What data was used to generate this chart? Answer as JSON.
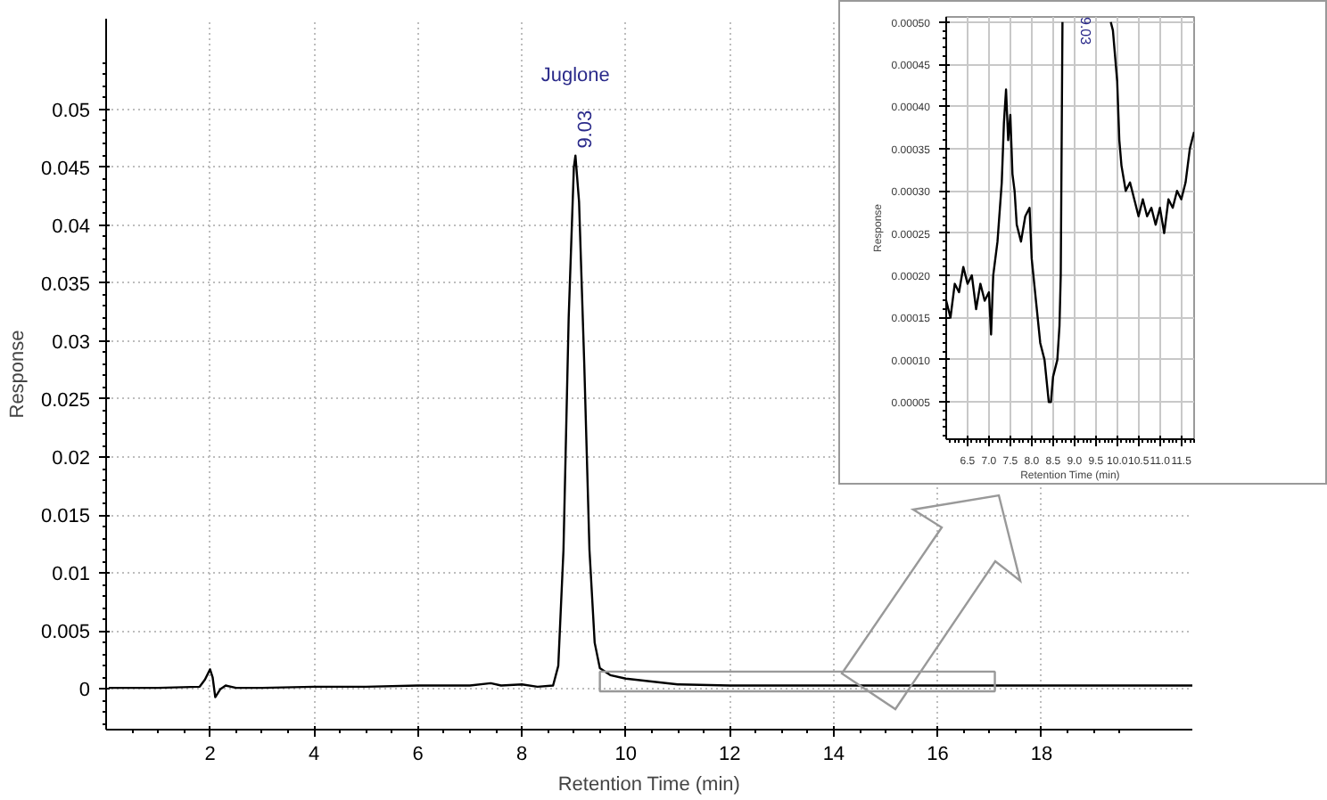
{
  "chart_data": [
    {
      "type": "line",
      "xlabel": "Retention Time (min)",
      "ylabel": "Response",
      "xlim": [
        0,
        20.9
      ],
      "ylim": [
        -0.0035,
        0.0578
      ],
      "xticks": [
        2,
        4,
        6,
        8,
        10,
        12,
        14,
        16,
        18
      ],
      "yticks": [
        0,
        0.005,
        0.01,
        0.015,
        0.02,
        0.025,
        0.03,
        0.035,
        0.04,
        0.045,
        0.05
      ],
      "grid": true,
      "line_style": "solid",
      "annotations": [
        "Juglone",
        {
          "text": "9.03",
          "x": 9.03,
          "y": 0.046
        }
      ],
      "series": [
        {
          "color": "#000000",
          "x": [
            0.05,
            1,
            1.8,
            1.9,
            2.0,
            2.05,
            2.1,
            2.2,
            2.3,
            2.5,
            3,
            4,
            5,
            6,
            7,
            7.4,
            7.6,
            8.0,
            8.3,
            8.6,
            8.7,
            8.8,
            8.9,
            9.0,
            9.03,
            9.1,
            9.2,
            9.3,
            9.4,
            9.5,
            9.7,
            10,
            11,
            12,
            14,
            16,
            18,
            20.9
          ],
          "values": [
            0.0001,
            0.0001,
            0.0002,
            0.0008,
            0.0017,
            0.001,
            -0.0007,
            0.0,
            0.0003,
            0.0001,
            0.0001,
            0.0002,
            0.0002,
            0.0003,
            0.0003,
            0.0005,
            0.0003,
            0.0004,
            0.0002,
            0.0003,
            0.002,
            0.012,
            0.032,
            0.045,
            0.046,
            0.042,
            0.028,
            0.012,
            0.004,
            0.0018,
            0.0012,
            0.0009,
            0.0004,
            0.0003,
            0.0003,
            0.0003,
            0.0003,
            0.0003
          ]
        }
      ]
    },
    {
      "type": "line",
      "xlabel": "Retention Time (min)",
      "ylabel": "Response",
      "xlim": [
        6.0,
        11.8
      ],
      "ylim": [
        6e-06,
        0.000506
      ],
      "xticks": [
        {
          "value": 6.5,
          "label": "6.5"
        },
        {
          "value": 7.0,
          "label": "7.0"
        },
        {
          "value": 7.5,
          "label": "7.5"
        },
        {
          "value": 8.0,
          "label": "8.0"
        },
        {
          "value": 8.5,
          "label": "8.5"
        },
        {
          "value": 9.0,
          "label": "9.0"
        },
        {
          "value": 9.5,
          "label": "9.5"
        },
        {
          "value": 10.0,
          "label": "10.0"
        },
        {
          "value": 10.5,
          "label": "10.5"
        },
        {
          "value": 11.0,
          "label": "11.0"
        },
        {
          "value": 11.5,
          "label": "11.5"
        }
      ],
      "yticks": [
        {
          "value": 5e-05,
          "label": "0.00005"
        },
        {
          "value": 0.0001,
          "label": "0.00010"
        },
        {
          "value": 0.00015,
          "label": "0.00015"
        },
        {
          "value": 0.0002,
          "label": "0.00020"
        },
        {
          "value": 0.00025,
          "label": "0.00025"
        },
        {
          "value": 0.0003,
          "label": "0.00030"
        },
        {
          "value": 0.00035,
          "label": "0.00035"
        },
        {
          "value": 0.0004,
          "label": "0.00040"
        },
        {
          "value": 0.00045,
          "label": "0.00045"
        },
        {
          "value": 0.0005,
          "label": "0.00050"
        }
      ],
      "grid": true,
      "line_style": "solid",
      "annotations": [
        "9.03"
      ],
      "series": [
        {
          "color": "#000000",
          "x": [
            6.0,
            6.1,
            6.2,
            6.3,
            6.4,
            6.5,
            6.6,
            6.7,
            6.8,
            6.9,
            7.0,
            7.05,
            7.1,
            7.2,
            7.3,
            7.35,
            7.4,
            7.45,
            7.5,
            7.55,
            7.6,
            7.65,
            7.75,
            7.85,
            7.95,
            8.0,
            8.1,
            8.2,
            8.3,
            8.4,
            8.45,
            8.5,
            8.6,
            8.65,
            8.68,
            8.72,
            9.3,
            9.85,
            9.9,
            10.0,
            10.05,
            10.1,
            10.2,
            10.3,
            10.4,
            10.5,
            10.6,
            10.7,
            10.8,
            10.9,
            11.0,
            11.1,
            11.2,
            11.3,
            11.4,
            11.5,
            11.6,
            11.7,
            11.8
          ],
          "values": [
            0.00017,
            0.00015,
            0.00019,
            0.00018,
            0.00021,
            0.00019,
            0.0002,
            0.00016,
            0.00019,
            0.00017,
            0.00018,
            0.00013,
            0.0002,
            0.00024,
            0.00031,
            0.00038,
            0.00042,
            0.00036,
            0.00039,
            0.00032,
            0.0003,
            0.00026,
            0.00024,
            0.00027,
            0.00028,
            0.00022,
            0.00017,
            0.00012,
            0.0001,
            5e-05,
            5e-05,
            8e-05,
            0.0001,
            0.00014,
            0.0002,
            0.0005,
            null,
            0.0005,
            0.00049,
            0.00043,
            0.00036,
            0.00033,
            0.0003,
            0.00031,
            0.00029,
            0.00027,
            0.00029,
            0.00027,
            0.00028,
            0.00026,
            0.00028,
            0.00025,
            0.00029,
            0.00028,
            0.0003,
            0.00029,
            0.00031,
            0.00035,
            0.00037
          ]
        }
      ]
    }
  ]
}
